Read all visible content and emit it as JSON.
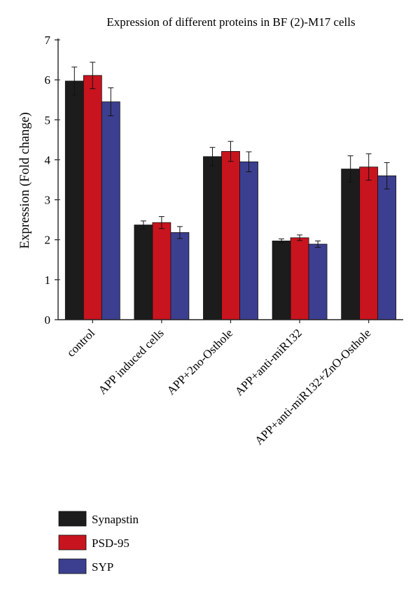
{
  "chart_data": {
    "type": "bar",
    "title": "Expression of different proteins in BF (2)-M17 cells",
    "xlabel": "",
    "ylabel": "Expression (Fold change)",
    "ylim": [
      0,
      7
    ],
    "yticks": [
      "0",
      "1",
      "2",
      "3",
      "4",
      "5",
      "6",
      "7"
    ],
    "categories": [
      "control",
      "APP induced cells",
      "APP+2no-Osthole",
      "APP+anti-miR132",
      "APP+anti-miR132+ZnO-Osthole"
    ],
    "series": [
      {
        "name": "Synapstin",
        "color": "#1c1c1c",
        "values": [
          5.97,
          2.37,
          4.08,
          1.97,
          3.77
        ],
        "errors": [
          0.35,
          0.1,
          0.23,
          0.05,
          0.33
        ]
      },
      {
        "name": "PSD-95",
        "color": "#c8141e",
        "values": [
          6.11,
          2.43,
          4.21,
          2.05,
          3.82
        ],
        "errors": [
          0.33,
          0.15,
          0.25,
          0.07,
          0.33
        ]
      },
      {
        "name": "SYP",
        "color": "#3c3f8f",
        "values": [
          5.45,
          2.18,
          3.95,
          1.89,
          3.6
        ],
        "errors": [
          0.35,
          0.15,
          0.25,
          0.08,
          0.33
        ]
      }
    ],
    "grid": false,
    "legend_position": "bottom-left",
    "tick_label_rotation": -45
  }
}
